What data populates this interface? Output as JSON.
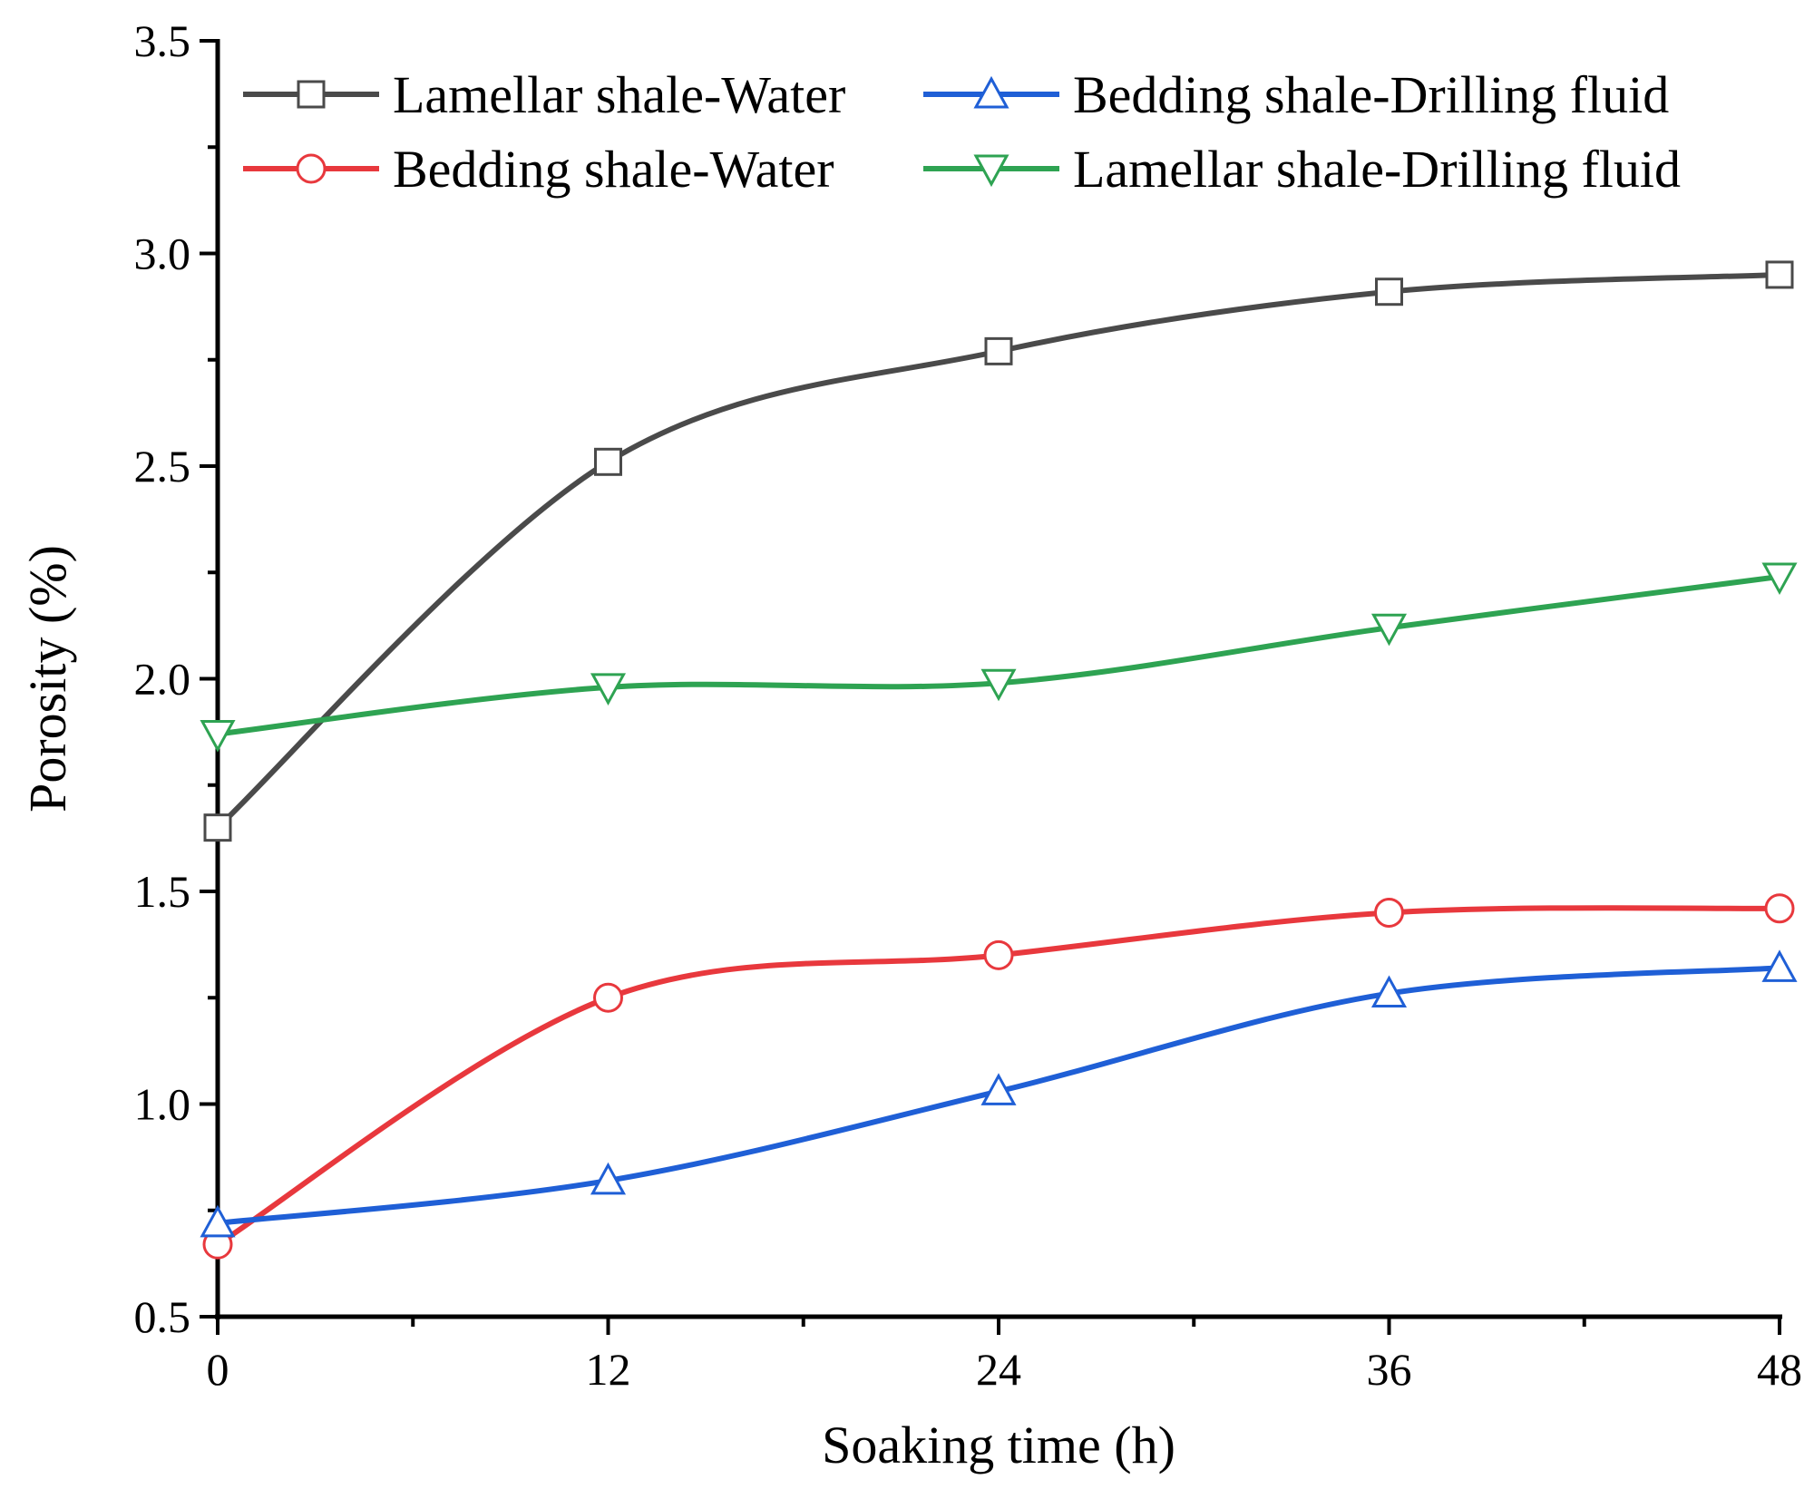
{
  "chart_data": {
    "type": "line",
    "title": "",
    "xlabel": "Soaking time (h)",
    "ylabel": "Porosity (%)",
    "xlim": [
      0,
      48
    ],
    "ylim": [
      0.5,
      3.5
    ],
    "xticks": [
      0,
      12,
      24,
      36,
      48
    ],
    "yticks": [
      0.5,
      1.0,
      1.5,
      2.0,
      2.5,
      3.0,
      3.5
    ],
    "xtick_labels": [
      "0",
      "12",
      "24",
      "36",
      "48"
    ],
    "ytick_labels": [
      "0.5",
      "1.0",
      "1.5",
      "2.0",
      "2.5",
      "3.0",
      "3.5"
    ],
    "grid": false,
    "legend_position": "top",
    "x": [
      0,
      12,
      24,
      36,
      48
    ],
    "series": [
      {
        "name": "Lamellar shale-Water",
        "color": "#4a4a4a",
        "marker": "square",
        "values": [
          1.65,
          2.51,
          2.77,
          2.91,
          2.95
        ]
      },
      {
        "name": "Bedding shale-Water",
        "color": "#e8383d",
        "marker": "circle",
        "values": [
          0.67,
          1.25,
          1.35,
          1.45,
          1.46
        ]
      },
      {
        "name": "Bedding shale-Drilling fluid",
        "color": "#1f5fd6",
        "marker": "triangle-up",
        "values": [
          0.72,
          0.82,
          1.03,
          1.26,
          1.32
        ]
      },
      {
        "name": "Lamellar shale-Drilling fluid",
        "color": "#2ea352",
        "marker": "triangle-down",
        "values": [
          1.87,
          1.98,
          1.99,
          2.12,
          2.24
        ]
      }
    ]
  }
}
